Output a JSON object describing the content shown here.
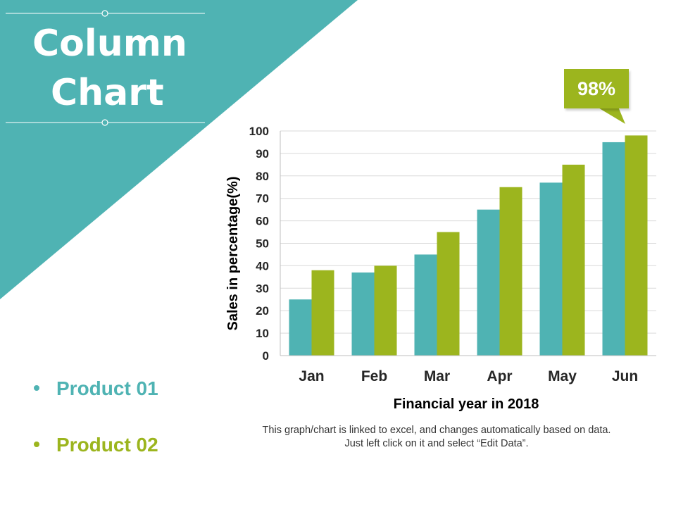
{
  "title": {
    "line1": "Column",
    "line2": "Chart"
  },
  "legend": [
    {
      "label": "Product 01",
      "color": "#4fb3b3"
    },
    {
      "label": "Product 02",
      "color": "#9cb51e"
    }
  ],
  "note": "This graph/chart is linked to excel, and changes automatically based on data. Just left click on it and select “Edit Data”.",
  "callout": {
    "label": "98%",
    "color": "#9cb51e"
  },
  "colors": {
    "banner": "#4fb3b3",
    "accent": "#9cb51e"
  },
  "chart_data": {
    "type": "bar",
    "categories": [
      "Jan",
      "Feb",
      "Mar",
      "Apr",
      "May",
      "Jun"
    ],
    "series": [
      {
        "name": "Product 01",
        "values": [
          25,
          37,
          45,
          65,
          77,
          95
        ],
        "color": "#4fb3b3"
      },
      {
        "name": "Product 02",
        "values": [
          38,
          40,
          55,
          75,
          85,
          98
        ],
        "color": "#9cb51e"
      }
    ],
    "xlabel": "Financial year in 2018",
    "ylabel": "Sales in percentage(%)",
    "ylim": [
      0,
      100
    ],
    "yticks": [
      0,
      10,
      20,
      30,
      40,
      50,
      60,
      70,
      80,
      90,
      100
    ],
    "grid": true
  }
}
